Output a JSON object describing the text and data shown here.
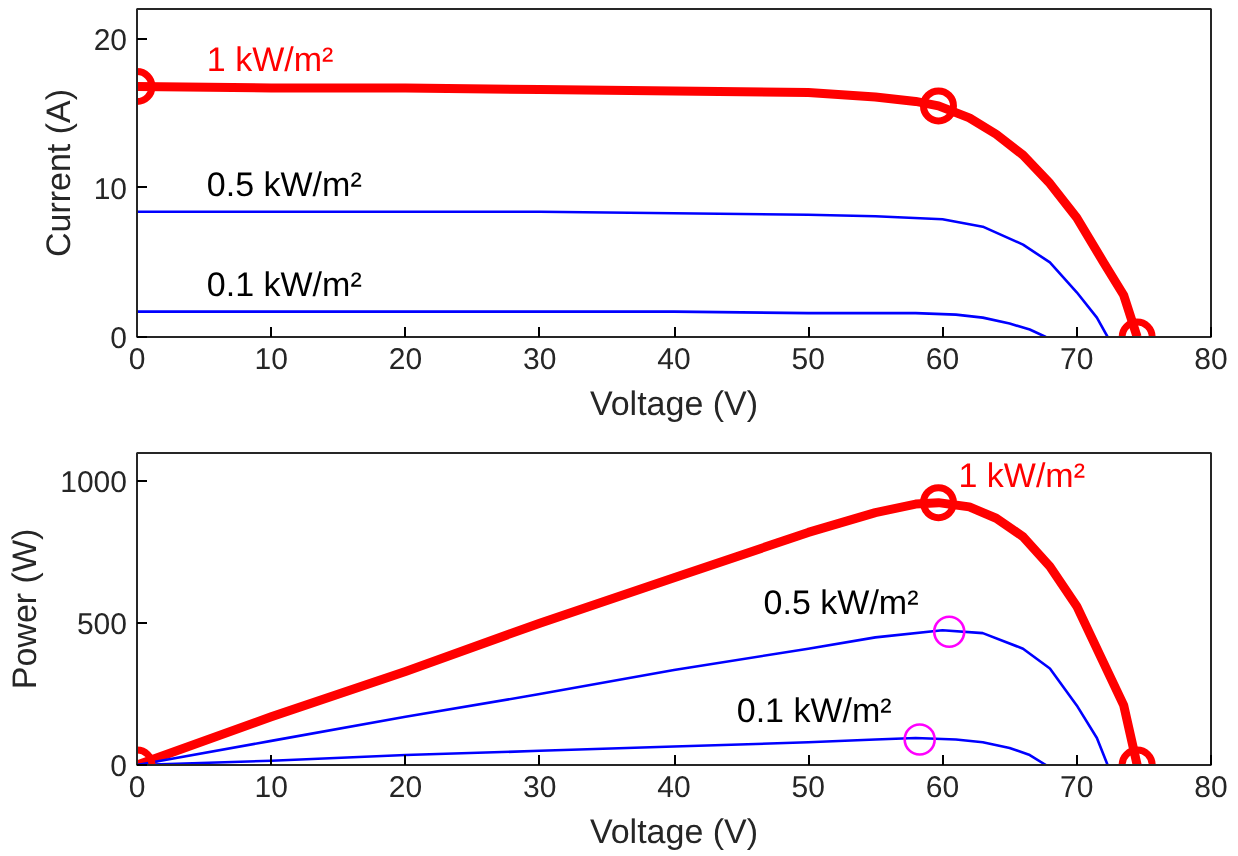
{
  "chart_data": [
    {
      "type": "line",
      "xlabel": "Voltage (V)",
      "ylabel": "Current (A)",
      "xlim": [
        0,
        80
      ],
      "ylim": [
        0,
        22
      ],
      "xticks": [
        0,
        10,
        20,
        30,
        40,
        50,
        60,
        70,
        80
      ],
      "yticks": [
        0,
        10,
        20
      ],
      "series": [
        {
          "name": "1 kW/m²",
          "color": "#ff0000",
          "x": [
            0,
            10,
            20,
            30,
            40,
            50,
            55,
            58,
            59.7,
            62,
            64,
            66,
            68,
            70,
            72,
            73.5,
            74.5
          ],
          "values": [
            16.8,
            16.7,
            16.7,
            16.6,
            16.5,
            16.4,
            16.1,
            15.8,
            15.5,
            14.7,
            13.6,
            12.2,
            10.3,
            8.0,
            5.0,
            2.8,
            0
          ]
        },
        {
          "name": "0.5 kW/m²",
          "color": "#0000ff",
          "x": [
            0,
            10,
            20,
            30,
            40,
            50,
            55,
            60,
            63,
            66,
            68,
            70,
            71.5,
            72.3
          ],
          "values": [
            8.4,
            8.4,
            8.4,
            8.4,
            8.3,
            8.2,
            8.1,
            7.9,
            7.4,
            6.2,
            5.0,
            3.0,
            1.3,
            0
          ]
        },
        {
          "name": "0.1 kW/m²",
          "color": "#0000ff",
          "x": [
            0,
            10,
            20,
            30,
            40,
            50,
            55,
            58,
            61,
            63,
            65,
            66.5,
            67.7
          ],
          "values": [
            1.7,
            1.7,
            1.7,
            1.7,
            1.7,
            1.6,
            1.6,
            1.6,
            1.5,
            1.3,
            0.9,
            0.5,
            0
          ]
        },
        {
          "color": "#ff0000",
          "type": "scatter",
          "marker": "circle",
          "x": [
            0,
            59.7,
            74.5
          ],
          "values": [
            16.8,
            15.5,
            0
          ]
        }
      ]
    },
    {
      "type": "line",
      "xlabel": "Voltage (V)",
      "ylabel": "Power (W)",
      "xlim": [
        0,
        80
      ],
      "ylim": [
        0,
        1100
      ],
      "xticks": [
        0,
        10,
        20,
        30,
        40,
        50,
        60,
        70,
        80
      ],
      "yticks": [
        0,
        500,
        1000
      ],
      "series": [
        {
          "name": "1 kW/m²",
          "color": "#ff0000",
          "x": [
            0,
            10,
            20,
            30,
            40,
            50,
            55,
            58,
            59.7,
            62,
            64,
            66,
            68,
            70,
            72,
            73.5,
            74.5
          ],
          "values": [
            0,
            170,
            330,
            500,
            660,
            820,
            890,
            920,
            925,
            910,
            870,
            805,
            700,
            560,
            360,
            210,
            0
          ]
        },
        {
          "name": "0.5 kW/m²",
          "color": "#0000ff",
          "x": [
            0,
            10,
            20,
            30,
            40,
            50,
            55,
            60,
            63,
            66,
            68,
            70,
            71.5,
            72.3
          ],
          "values": [
            0,
            85,
            170,
            250,
            335,
            410,
            450,
            475,
            465,
            410,
            340,
            210,
            95,
            0
          ]
        },
        {
          "name": "0.1 kW/m²",
          "color": "#0000ff",
          "x": [
            0,
            10,
            20,
            30,
            40,
            50,
            55,
            58,
            61,
            63,
            65,
            66.5,
            67.7
          ],
          "values": [
            0,
            15,
            35,
            50,
            65,
            80,
            90,
            95,
            90,
            80,
            60,
            35,
            0
          ]
        },
        {
          "color": "#ff0000",
          "type": "scatter",
          "marker": "circle",
          "x": [
            0,
            59.7,
            74.5
          ],
          "values": [
            0,
            925,
            0
          ]
        },
        {
          "color": "#ff00ff",
          "type": "scatter",
          "marker": "circle",
          "x": [
            60.5,
            58.3
          ],
          "values": [
            470,
            90
          ]
        }
      ]
    }
  ]
}
